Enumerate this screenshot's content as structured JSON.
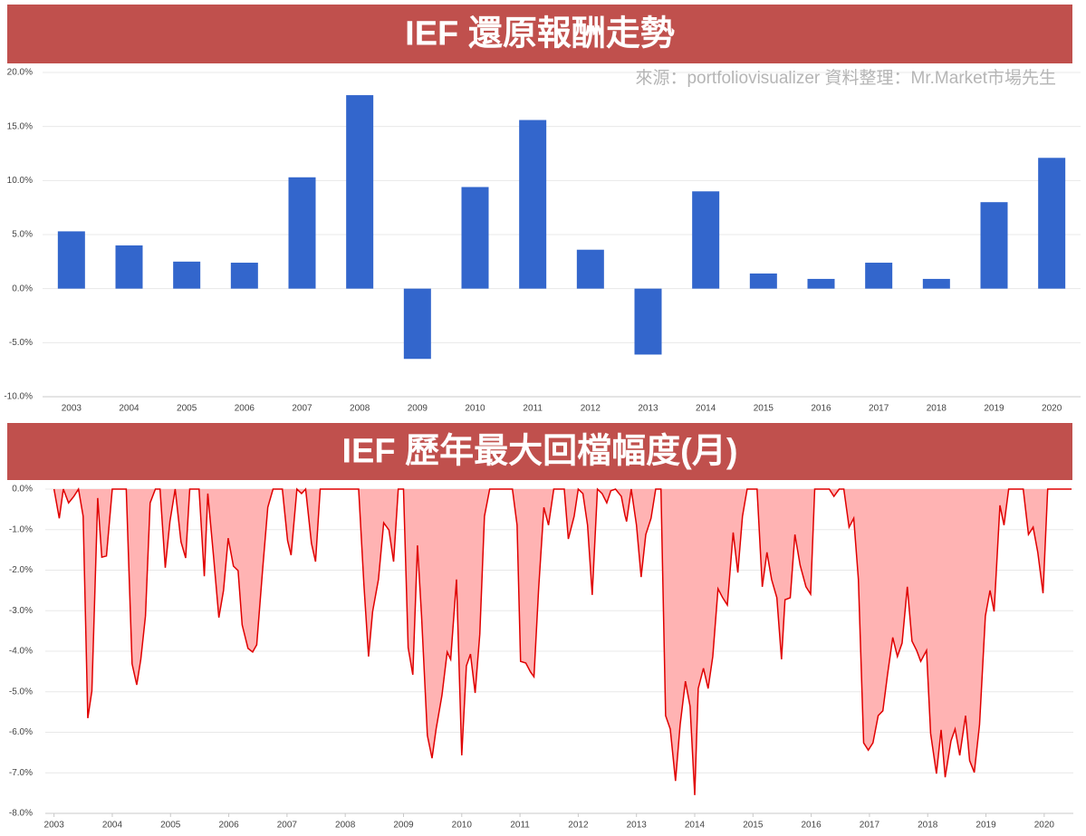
{
  "chart_data": [
    {
      "type": "bar",
      "title": "IEF 還原報酬走勢",
      "source": "來源：portfoliovisualizer 資料整理：Mr.Market市場先生",
      "categories": [
        "2003",
        "2004",
        "2005",
        "2006",
        "2007",
        "2008",
        "2009",
        "2010",
        "2011",
        "2012",
        "2013",
        "2014",
        "2015",
        "2016",
        "2017",
        "2018",
        "2019",
        "2020"
      ],
      "values": [
        5.3,
        4.0,
        2.5,
        2.4,
        10.3,
        17.9,
        -6.5,
        9.4,
        15.6,
        3.6,
        -6.1,
        9.0,
        1.4,
        0.9,
        2.4,
        0.9,
        8.0,
        12.1
      ],
      "color": "#3366cc",
      "ylim": [
        -10,
        20
      ],
      "yticks": [
        {
          "value": -10,
          "label": "-10.0%"
        },
        {
          "value": -5,
          "label": "-5.0%"
        },
        {
          "value": 0,
          "label": "0.0%"
        },
        {
          "value": 5,
          "label": "5.0%"
        },
        {
          "value": 10,
          "label": "10.0%"
        },
        {
          "value": 15,
          "label": "15.0%"
        },
        {
          "value": 20,
          "label": "20.0%"
        }
      ],
      "grid": true
    },
    {
      "type": "area",
      "title": "IEF 歷年最大回檔幅度(月)",
      "x": [
        2003.0,
        2003.09,
        2003.16,
        2003.25,
        2003.34,
        2003.42,
        2003.5,
        2003.58,
        2003.65,
        2003.75,
        2003.82,
        2003.9,
        2004.0,
        2004.24,
        2004.34,
        2004.42,
        2004.49,
        2004.57,
        2004.65,
        2004.74,
        2004.82,
        2004.91,
        2004.99,
        2005.08,
        2005.18,
        2005.26,
        2005.33,
        2005.49,
        2005.58,
        2005.64,
        2005.74,
        2005.83,
        2005.91,
        2005.99,
        2006.08,
        2006.16,
        2006.23,
        2006.33,
        2006.41,
        2006.48,
        2006.58,
        2006.67,
        2006.76,
        2006.92,
        2007.01,
        2007.07,
        2007.17,
        2007.25,
        2007.32,
        2007.42,
        2007.49,
        2007.57,
        2008.23,
        2008.32,
        2008.4,
        2008.47,
        2008.57,
        2008.66,
        2008.75,
        2008.83,
        2008.91,
        2009.0,
        2009.08,
        2009.16,
        2009.24,
        2009.31,
        2009.41,
        2009.49,
        2009.56,
        2009.66,
        2009.75,
        2009.81,
        2009.91,
        2010.0,
        2010.08,
        2010.15,
        2010.23,
        2010.31,
        2010.39,
        2010.48,
        2010.87,
        2010.95,
        2011.01,
        2011.1,
        2011.18,
        2011.24,
        2011.32,
        2011.41,
        2011.49,
        2011.58,
        2011.76,
        2011.83,
        2011.93,
        2012.0,
        2012.08,
        2012.16,
        2012.24,
        2012.33,
        2012.41,
        2012.49,
        2012.56,
        2012.64,
        2012.74,
        2012.8,
        2012.83,
        2012.91,
        2013.0,
        2013.08,
        2013.16,
        2013.25,
        2013.33,
        2013.42,
        2013.5,
        2013.58,
        2013.67,
        2013.75,
        2013.84,
        2013.92,
        2014.0,
        2014.06,
        2014.15,
        2014.23,
        2014.31,
        2014.4,
        2014.48,
        2014.56,
        2014.66,
        2014.74,
        2014.82,
        2014.9,
        2015.07,
        2015.16,
        2015.24,
        2015.32,
        2015.41,
        2015.49,
        2015.55,
        2015.64,
        2015.72,
        2015.81,
        2015.91,
        2015.99,
        2016.06,
        2016.31,
        2016.39,
        2016.48,
        2016.56,
        2016.65,
        2016.73,
        2016.81,
        2016.9,
        2016.98,
        2017.06,
        2017.15,
        2017.23,
        2017.31,
        2017.4,
        2017.48,
        2017.56,
        2017.65,
        2017.73,
        2017.81,
        2017.88,
        2017.98,
        2018.05,
        2018.15,
        2018.23,
        2018.3,
        2018.4,
        2018.47,
        2018.55,
        2018.65,
        2018.72,
        2018.8,
        2018.89,
        2018.99,
        2019.07,
        2019.14,
        2019.24,
        2019.31,
        2019.39,
        2019.64,
        2019.73,
        2019.81,
        2019.89,
        2019.98,
        2020.06,
        2020.47
      ],
      "values": [
        0,
        -0.72,
        0,
        -0.34,
        -0.18,
        0,
        -0.67,
        -5.65,
        -4.98,
        -0.22,
        -1.68,
        -1.65,
        0,
        0,
        -4.31,
        -4.83,
        -4.2,
        -3.13,
        -0.34,
        0,
        0,
        -1.94,
        -0.8,
        0,
        -1.3,
        -1.7,
        0,
        0,
        -2.15,
        -0.11,
        -1.68,
        -3.17,
        -2.5,
        -1.21,
        -1.9,
        -2.01,
        -3.35,
        -3.93,
        -4.02,
        -3.84,
        -2.01,
        -0.45,
        0,
        0,
        -1.27,
        -1.63,
        0,
        -0.11,
        0,
        -1.34,
        -1.79,
        0,
        0,
        -2.35,
        -4.13,
        -3.02,
        -2.23,
        -0.83,
        -1.01,
        -1.79,
        0,
        0,
        -3.91,
        -4.58,
        -1.39,
        -3.13,
        -6.08,
        -6.64,
        -5.92,
        -5.09,
        -4.02,
        -4.2,
        -2.23,
        -6.57,
        -4.36,
        -4.07,
        -5.03,
        -3.58,
        -0.67,
        0,
        0,
        -0.89,
        -4.25,
        -4.29,
        -4.51,
        -4.63,
        -2.46,
        -0.45,
        -0.89,
        0,
        0,
        -1.23,
        -0.67,
        0,
        -0.11,
        -0.89,
        -2.61,
        0,
        -0.11,
        -0.34,
        -0.04,
        0,
        -0.18,
        -0.63,
        -0.8,
        0,
        -0.89,
        -2.17,
        -1.12,
        -0.72,
        0,
        0,
        -5.59,
        -5.92,
        -7.2,
        -5.81,
        -4.74,
        -5.36,
        -7.55,
        -4.92,
        -4.42,
        -4.92,
        -4.13,
        -2.46,
        -2.68,
        -2.86,
        -1.07,
        -2.06,
        -0.67,
        0,
        0,
        -2.41,
        -1.56,
        -2.23,
        -2.68,
        -4.2,
        -2.73,
        -2.68,
        -1.12,
        -1.88,
        -2.41,
        -2.59,
        0,
        0,
        -0.18,
        0,
        0,
        -0.94,
        -0.72,
        -2.23,
        -6.26,
        -6.44,
        -6.26,
        -5.59,
        -5.47,
        -4.58,
        -3.66,
        -4.13,
        -3.8,
        -2.41,
        -3.75,
        -3.98,
        -4.25,
        -3.98,
        -6.03,
        -7.02,
        -5.94,
        -7.11,
        -6.21,
        -5.92,
        -6.57,
        -5.59,
        -6.7,
        -6.99,
        -5.81,
        -3.13,
        -2.5,
        -3.02,
        -0.4,
        -0.89,
        0,
        0,
        -1.12,
        -0.94,
        -1.56,
        -2.57,
        0,
        0
      ],
      "color": "#e00000",
      "fill_color": "#ffb3b3",
      "xlim": [
        2002.85,
        2020.5
      ],
      "xticks": [
        2003,
        2004,
        2005,
        2006,
        2007,
        2008,
        2009,
        2010,
        2011,
        2012,
        2013,
        2014,
        2015,
        2016,
        2017,
        2018,
        2019,
        2020
      ],
      "ylim": [
        -8,
        0
      ],
      "yticks": [
        {
          "value": -8,
          "label": "-8.0%"
        },
        {
          "value": -7,
          "label": "-7.0%"
        },
        {
          "value": -6,
          "label": "-6.0%"
        },
        {
          "value": -5,
          "label": "-5.0%"
        },
        {
          "value": -4,
          "label": "-4.0%"
        },
        {
          "value": -3,
          "label": "-3.0%"
        },
        {
          "value": -2,
          "label": "-2.0%"
        },
        {
          "value": -1,
          "label": "-1.0%"
        },
        {
          "value": 0,
          "label": "0.0%"
        }
      ],
      "grid": true
    }
  ]
}
